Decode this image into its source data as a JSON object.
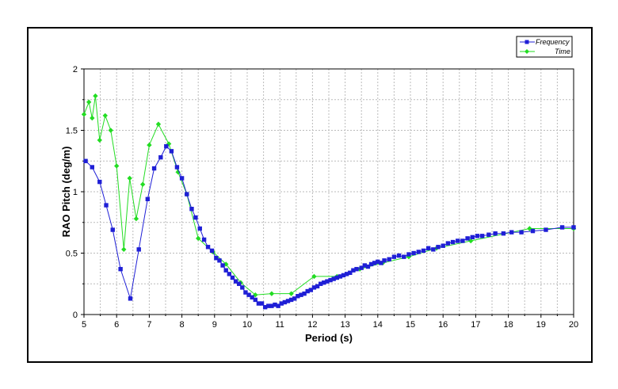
{
  "chart_data": {
    "type": "line",
    "xlabel": "Period (s)",
    "ylabel": "RAO Pitch (deg/m)",
    "xlim": [
      5,
      20
    ],
    "ylim": [
      0,
      2
    ],
    "xticks": [
      "5",
      "6",
      "7",
      "8",
      "9",
      "10",
      "11",
      "12",
      "13",
      "14",
      "15",
      "16",
      "17",
      "18",
      "19",
      "20"
    ],
    "yticks": [
      "0",
      "0.5",
      "1",
      "1.5",
      "2"
    ],
    "grid": true,
    "legend_position": "top-right",
    "series": [
      {
        "name": "Frequency",
        "color": "#1f1fd6",
        "marker": "square",
        "x": [
          5.05,
          5.25,
          5.48,
          5.68,
          5.88,
          6.12,
          6.42,
          6.68,
          6.95,
          7.15,
          7.35,
          7.52,
          7.68,
          7.85,
          8.0,
          8.15,
          8.3,
          8.42,
          8.55,
          8.68,
          8.8,
          8.92,
          9.05,
          9.15,
          9.25,
          9.35,
          9.45,
          9.55,
          9.65,
          9.75,
          9.85,
          9.95,
          10.05,
          10.15,
          10.25,
          10.35,
          10.45,
          10.55,
          10.65,
          10.75,
          10.85,
          10.95,
          11.05,
          11.15,
          11.25,
          11.35,
          11.45,
          11.55,
          11.65,
          11.75,
          11.85,
          11.95,
          12.05,
          12.15,
          12.25,
          12.35,
          12.45,
          12.55,
          12.65,
          12.75,
          12.85,
          12.95,
          13.05,
          13.15,
          13.25,
          13.35,
          13.5,
          13.6,
          13.7,
          13.8,
          13.9,
          14.0,
          14.1,
          14.2,
          14.35,
          14.5,
          14.65,
          14.8,
          14.95,
          15.1,
          15.25,
          15.4,
          15.55,
          15.7,
          15.85,
          16.0,
          16.15,
          16.3,
          16.45,
          16.6,
          16.75,
          16.9,
          17.05,
          17.2,
          17.4,
          17.6,
          17.85,
          18.1,
          18.4,
          18.75,
          19.15,
          19.65,
          20.0
        ],
        "y": [
          1.25,
          1.2,
          1.08,
          0.89,
          0.69,
          0.37,
          0.13,
          0.53,
          0.94,
          1.19,
          1.28,
          1.37,
          1.33,
          1.2,
          1.11,
          0.98,
          0.86,
          0.79,
          0.7,
          0.61,
          0.55,
          0.52,
          0.46,
          0.44,
          0.4,
          0.36,
          0.33,
          0.3,
          0.27,
          0.25,
          0.22,
          0.18,
          0.16,
          0.14,
          0.12,
          0.09,
          0.09,
          0.06,
          0.07,
          0.07,
          0.08,
          0.07,
          0.09,
          0.1,
          0.11,
          0.12,
          0.13,
          0.15,
          0.16,
          0.17,
          0.19,
          0.2,
          0.22,
          0.23,
          0.25,
          0.26,
          0.27,
          0.28,
          0.29,
          0.3,
          0.31,
          0.32,
          0.33,
          0.34,
          0.36,
          0.37,
          0.38,
          0.4,
          0.39,
          0.41,
          0.42,
          0.43,
          0.42,
          0.44,
          0.45,
          0.47,
          0.48,
          0.47,
          0.49,
          0.5,
          0.51,
          0.52,
          0.54,
          0.53,
          0.55,
          0.56,
          0.58,
          0.59,
          0.6,
          0.6,
          0.62,
          0.63,
          0.64,
          0.64,
          0.65,
          0.66,
          0.66,
          0.67,
          0.67,
          0.68,
          0.69,
          0.71,
          0.71
        ]
      },
      {
        "name": "Time",
        "color": "#22dd22",
        "marker": "diamond",
        "x": [
          5.0,
          5.15,
          5.25,
          5.35,
          5.48,
          5.65,
          5.82,
          6.0,
          6.22,
          6.4,
          6.6,
          6.8,
          7.0,
          7.28,
          7.6,
          7.88,
          8.15,
          8.5,
          8.95,
          9.35,
          9.8,
          10.25,
          10.75,
          11.35,
          12.05,
          12.75,
          13.45,
          14.15,
          14.95,
          15.8,
          16.85,
          18.65,
          20.0
        ],
        "y": [
          1.63,
          1.73,
          1.6,
          1.78,
          1.42,
          1.62,
          1.5,
          1.21,
          0.53,
          1.11,
          0.78,
          1.06,
          1.38,
          1.55,
          1.39,
          1.16,
          0.98,
          0.62,
          0.51,
          0.41,
          0.26,
          0.16,
          0.17,
          0.17,
          0.31,
          0.31,
          0.37,
          0.42,
          0.47,
          0.54,
          0.6,
          0.7,
          0.7
        ]
      }
    ]
  }
}
